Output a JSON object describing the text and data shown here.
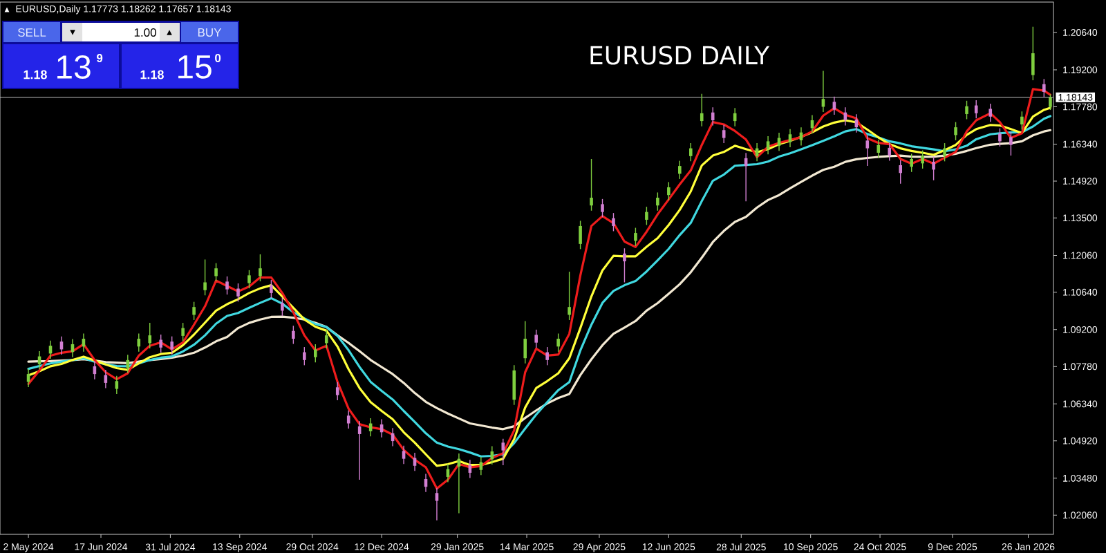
{
  "chart_data": {
    "type": "candlestick",
    "title": "EURUSD,Daily 1.17773 1.18262 1.17657 1.18143",
    "annotations": [
      "EURUSD DAILY",
      "SELL",
      "▼",
      "1.00",
      "▲",
      "BUY",
      "1.18",
      "13",
      "9",
      "1.18",
      "15",
      "0",
      "▲"
    ],
    "xlim": [
      "2024-04-14",
      "2026-02-11"
    ],
    "ylim": [
      1.0132,
      1.2181
    ],
    "xticks": [
      {
        "value": "2024-05-02",
        "label": "2 May 2024"
      },
      {
        "value": "2024-06-17",
        "label": "17 Jun 2024"
      },
      {
        "value": "2024-07-31",
        "label": "31 Jul 2024"
      },
      {
        "value": "2024-09-13",
        "label": "13 Sep 2024"
      },
      {
        "value": "2024-10-29",
        "label": "29 Oct 2024"
      },
      {
        "value": "2024-12-12",
        "label": "12 Dec 2024"
      },
      {
        "value": "2025-01-29",
        "label": "29 Jan 2025"
      },
      {
        "value": "2025-03-14",
        "label": "14 Mar 2025"
      },
      {
        "value": "2025-04-29",
        "label": "29 Apr 2025"
      },
      {
        "value": "2025-06-12",
        "label": "12 Jun 2025"
      },
      {
        "value": "2025-07-28",
        "label": "28 Jul 2025"
      },
      {
        "value": "2025-09-10",
        "label": "10 Sep 2025"
      },
      {
        "value": "2025-10-24",
        "label": "24 Oct 2025"
      },
      {
        "value": "2025-12-09",
        "label": "9 Dec 2025"
      },
      {
        "value": "2026-01-26",
        "label": "26 Jan 2026"
      }
    ],
    "yticks": [
      {
        "value": 1.0206,
        "label": "1.02060"
      },
      {
        "value": 1.0348,
        "label": "1.03480"
      },
      {
        "value": 1.0492,
        "label": "1.04920"
      },
      {
        "value": 1.0634,
        "label": "1.06340"
      },
      {
        "value": 1.0778,
        "label": "1.07780"
      },
      {
        "value": 1.092,
        "label": "1.09200"
      },
      {
        "value": 1.1064,
        "label": "1.10640"
      },
      {
        "value": 1.1206,
        "label": "1.12060"
      },
      {
        "value": 1.135,
        "label": "1.13500"
      },
      {
        "value": 1.1492,
        "label": "1.14920"
      },
      {
        "value": 1.1634,
        "label": "1.16340"
      },
      {
        "value": 1.1778,
        "label": "1.17780"
      },
      {
        "value": 1.192,
        "label": "1.19200"
      },
      {
        "value": 1.2064,
        "label": "1.20640"
      }
    ],
    "ref_lines": [
      {
        "axis": "y",
        "value": 1.18143,
        "label": "1.18143",
        "color": "#c0c0c0"
      }
    ],
    "x": [
      "2024-05-02",
      "2024-05-09",
      "2024-05-16",
      "2024-05-23",
      "2024-05-30",
      "2024-06-06",
      "2024-06-13",
      "2024-06-20",
      "2024-06-27",
      "2024-07-04",
      "2024-07-11",
      "2024-07-18",
      "2024-07-25",
      "2024-08-01",
      "2024-08-08",
      "2024-08-15",
      "2024-08-22",
      "2024-08-29",
      "2024-09-05",
      "2024-09-12",
      "2024-09-19",
      "2024-09-26",
      "2024-10-03",
      "2024-10-10",
      "2024-10-17",
      "2024-10-24",
      "2024-10-31",
      "2024-11-07",
      "2024-11-14",
      "2024-11-21",
      "2024-11-28",
      "2024-12-05",
      "2024-12-12",
      "2024-12-19",
      "2024-12-26",
      "2025-01-02",
      "2025-01-09",
      "2025-01-16",
      "2025-01-23",
      "2025-01-30",
      "2025-02-06",
      "2025-02-13",
      "2025-02-20",
      "2025-02-27",
      "2025-03-06",
      "2025-03-13",
      "2025-03-20",
      "2025-03-27",
      "2025-04-03",
      "2025-04-10",
      "2025-04-17",
      "2025-04-24",
      "2025-05-01",
      "2025-05-08",
      "2025-05-15",
      "2025-05-22",
      "2025-05-29",
      "2025-06-05",
      "2025-06-12",
      "2025-06-19",
      "2025-06-26",
      "2025-07-03",
      "2025-07-10",
      "2025-07-17",
      "2025-07-24",
      "2025-07-31",
      "2025-08-07",
      "2025-08-14",
      "2025-08-21",
      "2025-08-28",
      "2025-09-04",
      "2025-09-11",
      "2025-09-18",
      "2025-09-25",
      "2025-10-02",
      "2025-10-09",
      "2025-10-16",
      "2025-10-23",
      "2025-10-30",
      "2025-11-06",
      "2025-11-13",
      "2025-11-20",
      "2025-11-27",
      "2025-12-04",
      "2025-12-11",
      "2025-12-18",
      "2025-12-24",
      "2026-01-02",
      "2026-01-08",
      "2026-01-15",
      "2026-01-22",
      "2026-01-29",
      "2026-02-05",
      "2026-02-09"
    ],
    "ohlc": [
      [
        1.0719,
        1.0769,
        1.0699,
        1.0749
      ],
      [
        1.0787,
        1.0837,
        1.0767,
        1.0817
      ],
      [
        1.0828,
        1.0878,
        1.0808,
        1.0858
      ],
      [
        1.0874,
        1.0894,
        1.0824,
        1.0844
      ],
      [
        1.0834,
        1.0884,
        1.0814,
        1.0864
      ],
      [
        1.0855,
        1.0905,
        1.0835,
        1.0885
      ],
      [
        1.0779,
        1.0799,
        1.0729,
        1.0749
      ],
      [
        1.0745,
        1.0765,
        1.0695,
        1.0715
      ],
      [
        1.0692,
        1.0742,
        1.0672,
        1.0722
      ],
      [
        1.0773,
        1.0823,
        1.0753,
        1.0803
      ],
      [
        1.0855,
        1.0905,
        1.0835,
        1.0885
      ],
      [
        1.0868,
        1.0946,
        1.0848,
        1.0898
      ],
      [
        1.0881,
        1.0901,
        1.0831,
        1.0851
      ],
      [
        1.0874,
        1.0894,
        1.0824,
        1.0844
      ],
      [
        1.0896,
        1.0946,
        1.0876,
        1.0926
      ],
      [
        1.0977,
        1.1027,
        1.0957,
        1.1007
      ],
      [
        1.1072,
        1.119,
        1.1052,
        1.1102
      ],
      [
        1.1126,
        1.1176,
        1.1106,
        1.1156
      ],
      [
        1.1105,
        1.1125,
        1.1055,
        1.1075
      ],
      [
        1.1078,
        1.1098,
        1.1028,
        1.1048
      ],
      [
        1.1099,
        1.1149,
        1.1079,
        1.1129
      ],
      [
        1.1126,
        1.121,
        1.1106,
        1.1156
      ],
      [
        1.1091,
        1.1111,
        1.1041,
        1.1061
      ],
      [
        1.1023,
        1.1043,
        1.0973,
        1.0993
      ],
      [
        1.0915,
        1.0935,
        1.0865,
        1.0885
      ],
      [
        1.0833,
        1.0853,
        1.0783,
        1.0803
      ],
      [
        1.0814,
        1.0864,
        1.0794,
        1.0844
      ],
      [
        1.0868,
        1.0918,
        1.0848,
        1.0898
      ],
      [
        1.0698,
        1.0718,
        1.0648,
        1.0668
      ],
      [
        1.0589,
        1.0609,
        1.0539,
        1.0559
      ],
      [
        1.0548,
        1.0568,
        1.0342,
        1.0518
      ],
      [
        1.0529,
        1.0579,
        1.0509,
        1.0559
      ],
      [
        1.0555,
        1.0575,
        1.0505,
        1.0525
      ],
      [
        1.0521,
        1.0541,
        1.0471,
        1.0491
      ],
      [
        1.0453,
        1.0473,
        1.0403,
        1.0423
      ],
      [
        1.0426,
        1.0446,
        1.0376,
        1.0396
      ],
      [
        1.0345,
        1.0365,
        1.0295,
        1.0315
      ],
      [
        1.0291,
        1.0311,
        1.0186,
        1.0261
      ],
      [
        1.0353,
        1.0403,
        1.0333,
        1.0383
      ],
      [
        1.0393,
        1.0443,
        1.0213,
        1.0423
      ],
      [
        1.0399,
        1.0419,
        1.0349,
        1.0369
      ],
      [
        1.038,
        1.043,
        1.036,
        1.041
      ],
      [
        1.0421,
        1.0471,
        1.0401,
        1.0451
      ],
      [
        1.0485,
        1.05,
        1.0398,
        1.0455
      ],
      [
        1.065,
        1.0783,
        1.063,
        1.0763
      ],
      [
        1.081,
        1.0953,
        1.079,
        1.0885
      ],
      [
        1.09,
        1.092,
        1.085,
        1.087
      ],
      [
        1.0833,
        1.0853,
        1.0783,
        1.0803
      ],
      [
        1.0855,
        1.0905,
        1.0835,
        1.0885
      ],
      [
        1.0977,
        1.1143,
        1.0957,
        1.1007
      ],
      [
        1.125,
        1.1339,
        1.123,
        1.1319
      ],
      [
        1.1398,
        1.1577,
        1.1378,
        1.1428
      ],
      [
        1.1403,
        1.1423,
        1.1353,
        1.1373
      ],
      [
        1.1349,
        1.1369,
        1.1299,
        1.1319
      ],
      [
        1.1213,
        1.1233,
        1.1102,
        1.1183
      ],
      [
        1.1262,
        1.1312,
        1.1242,
        1.1292
      ],
      [
        1.1343,
        1.1393,
        1.1323,
        1.1373
      ],
      [
        1.1398,
        1.1448,
        1.1378,
        1.1428
      ],
      [
        1.1438,
        1.1488,
        1.1418,
        1.1468
      ],
      [
        1.152,
        1.157,
        1.15,
        1.155
      ],
      [
        1.1588,
        1.1638,
        1.1568,
        1.1618
      ],
      [
        1.1723,
        1.1828,
        1.1703,
        1.1753
      ],
      [
        1.1756,
        1.1776,
        1.1706,
        1.1726
      ],
      [
        1.1688,
        1.1708,
        1.1638,
        1.1658
      ],
      [
        1.1723,
        1.1773,
        1.1703,
        1.1753
      ],
      [
        1.158,
        1.16,
        1.1414,
        1.155
      ],
      [
        1.1588,
        1.1638,
        1.1568,
        1.1618
      ],
      [
        1.1615,
        1.1665,
        1.1595,
        1.1645
      ],
      [
        1.1628,
        1.1678,
        1.1608,
        1.1658
      ],
      [
        1.1642,
        1.1692,
        1.1622,
        1.1672
      ],
      [
        1.1649,
        1.1699,
        1.1629,
        1.1679
      ],
      [
        1.1696,
        1.1746,
        1.1676,
        1.1726
      ],
      [
        1.1778,
        1.1916,
        1.1758,
        1.1808
      ],
      [
        1.1797,
        1.1817,
        1.1747,
        1.1767
      ],
      [
        1.1756,
        1.1776,
        1.1706,
        1.1726
      ],
      [
        1.1729,
        1.1749,
        1.1679,
        1.1699
      ],
      [
        1.1648,
        1.1668,
        1.155,
        1.1618
      ],
      [
        1.1601,
        1.1651,
        1.1581,
        1.1631
      ],
      [
        1.162,
        1.164,
        1.157,
        1.159
      ],
      [
        1.1553,
        1.1573,
        1.1482,
        1.1523
      ],
      [
        1.1547,
        1.1597,
        1.1527,
        1.1577
      ],
      [
        1.156,
        1.161,
        1.154,
        1.159
      ],
      [
        1.1566,
        1.1586,
        1.1495,
        1.1536
      ],
      [
        1.1588,
        1.1638,
        1.1568,
        1.1618
      ],
      [
        1.1669,
        1.1719,
        1.1649,
        1.1699
      ],
      [
        1.175,
        1.1801,
        1.173,
        1.178
      ],
      [
        1.1783,
        1.1803,
        1.1733,
        1.1753
      ],
      [
        1.177,
        1.179,
        1.172,
        1.174
      ],
      [
        1.1675,
        1.1695,
        1.1625,
        1.1645
      ],
      [
        1.1661,
        1.1681,
        1.159,
        1.1631
      ],
      [
        1.171,
        1.176,
        1.169,
        1.174
      ],
      [
        1.19,
        1.2086,
        1.188,
        1.1984
      ],
      [
        1.1865,
        1.1885,
        1.1815,
        1.1835
      ],
      [
        1.17773,
        1.18262,
        1.17657,
        1.18143
      ]
    ],
    "colors": [
      "#7fcf3f",
      "#7fcf3f",
      "#7fcf3f",
      "#d27fd2",
      "#7fcf3f",
      "#7fcf3f",
      "#d27fd2",
      "#d27fd2",
      "#7fcf3f",
      "#7fcf3f",
      "#7fcf3f",
      "#7fcf3f",
      "#d27fd2",
      "#d27fd2",
      "#7fcf3f",
      "#7fcf3f",
      "#7fcf3f",
      "#7fcf3f",
      "#d27fd2",
      "#d27fd2",
      "#7fcf3f",
      "#7fcf3f",
      "#d27fd2",
      "#d27fd2",
      "#d27fd2",
      "#d27fd2",
      "#7fcf3f",
      "#7fcf3f",
      "#d27fd2",
      "#d27fd2",
      "#d27fd2",
      "#7fcf3f",
      "#d27fd2",
      "#d27fd2",
      "#d27fd2",
      "#d27fd2",
      "#d27fd2",
      "#d27fd2",
      "#7fcf3f",
      "#7fcf3f",
      "#d27fd2",
      "#7fcf3f",
      "#7fcf3f",
      "#d27fd2",
      "#7fcf3f",
      "#7fcf3f",
      "#d27fd2",
      "#d27fd2",
      "#7fcf3f",
      "#7fcf3f",
      "#7fcf3f",
      "#7fcf3f",
      "#d27fd2",
      "#d27fd2",
      "#d27fd2",
      "#7fcf3f",
      "#7fcf3f",
      "#7fcf3f",
      "#7fcf3f",
      "#7fcf3f",
      "#7fcf3f",
      "#7fcf3f",
      "#d27fd2",
      "#d27fd2",
      "#7fcf3f",
      "#d27fd2",
      "#7fcf3f",
      "#7fcf3f",
      "#7fcf3f",
      "#7fcf3f",
      "#7fcf3f",
      "#7fcf3f",
      "#7fcf3f",
      "#d27fd2",
      "#d27fd2",
      "#d27fd2",
      "#d27fd2",
      "#7fcf3f",
      "#d27fd2",
      "#d27fd2",
      "#7fcf3f",
      "#7fcf3f",
      "#d27fd2",
      "#7fcf3f",
      "#7fcf3f",
      "#7fcf3f",
      "#d27fd2",
      "#d27fd2",
      "#d27fd2",
      "#d27fd2",
      "#7fcf3f",
      "#7fcf3f",
      "#d27fd2",
      "#7fcf3f"
    ],
    "series": [
      {
        "type": "line",
        "color": "#f2e8d2",
        "values": [
          1.0797,
          1.0798,
          1.0799,
          1.0801,
          1.0803,
          1.0806,
          1.0801,
          1.0795,
          1.0793,
          1.0791,
          1.0797,
          1.0803,
          1.0807,
          1.0812,
          1.082,
          1.0831,
          1.0851,
          1.0875,
          1.0892,
          1.0926,
          1.0946,
          1.0959,
          1.0969,
          1.097,
          1.0966,
          1.0959,
          1.0946,
          1.093,
          1.0898,
          1.0869,
          1.0837,
          1.0803,
          1.0776,
          1.0749,
          1.0715,
          1.0676,
          1.0642,
          1.0618,
          1.0597,
          1.0578,
          1.0559,
          1.0551,
          1.0543,
          1.0537,
          1.0548,
          1.058,
          1.0609,
          1.0636,
          1.0657,
          1.0672,
          1.0745,
          1.0806,
          1.086,
          1.0904,
          1.0928,
          1.0953,
          1.0993,
          1.1022,
          1.1058,
          1.1095,
          1.1141,
          1.1197,
          1.1257,
          1.13,
          1.1335,
          1.1354,
          1.139,
          1.1419,
          1.1438,
          1.1464,
          1.1489,
          1.1513,
          1.1535,
          1.1547,
          1.1566,
          1.1576,
          1.1581,
          1.1585,
          1.1588,
          1.159,
          1.1586,
          1.1585,
          1.1586,
          1.159,
          1.1597,
          1.1608,
          1.1619,
          1.1632,
          1.1635,
          1.1638,
          1.1645,
          1.1668,
          1.1683,
          1.1688
        ]
      },
      {
        "type": "line",
        "color": "#40d8e0",
        "values": [
          1.0769,
          1.078,
          1.079,
          1.0797,
          1.0803,
          1.081,
          1.0797,
          1.0787,
          1.078,
          1.0779,
          1.079,
          1.0803,
          1.0812,
          1.0817,
          1.0836,
          1.0862,
          1.0898,
          1.0943,
          1.0973,
          1.0984,
          1.1004,
          1.1023,
          1.1041,
          1.102,
          1.0987,
          1.0963,
          1.0942,
          1.093,
          1.0896,
          1.0841,
          1.0776,
          1.0719,
          1.0684,
          1.0651,
          1.0607,
          1.0565,
          1.0521,
          1.0485,
          1.047,
          1.046,
          1.0447,
          1.0432,
          1.0434,
          1.044,
          1.0483,
          1.0539,
          1.0593,
          1.0641,
          1.0687,
          1.0718,
          1.084,
          1.0939,
          1.1023,
          1.1069,
          1.1091,
          1.1107,
          1.1144,
          1.1187,
          1.1231,
          1.1284,
          1.1331,
          1.1415,
          1.1493,
          1.1517,
          1.1551,
          1.1554,
          1.1557,
          1.1567,
          1.1586,
          1.1599,
          1.1614,
          1.163,
          1.1647,
          1.1664,
          1.1683,
          1.1692,
          1.1673,
          1.166,
          1.1645,
          1.1637,
          1.1626,
          1.162,
          1.1614,
          1.1607,
          1.1614,
          1.1628,
          1.1653,
          1.1672,
          1.1676,
          1.1679,
          1.168,
          1.1702,
          1.1732,
          1.1742
        ]
      },
      {
        "type": "line",
        "color": "#ffff3a",
        "values": [
          1.0744,
          1.076,
          1.0779,
          1.0788,
          1.0803,
          1.0816,
          1.0801,
          1.0786,
          1.0772,
          1.0765,
          1.079,
          1.0814,
          1.0826,
          1.0831,
          1.086,
          1.0901,
          1.0947,
          1.0993,
          1.1018,
          1.1037,
          1.1061,
          1.1079,
          1.1091,
          1.1048,
          1.1004,
          1.0959,
          1.0931,
          1.0916,
          1.0855,
          1.0768,
          1.0695,
          1.0641,
          1.0607,
          1.0575,
          1.0525,
          1.0485,
          1.044,
          1.0396,
          1.0402,
          1.0414,
          1.0399,
          1.0399,
          1.041,
          1.0423,
          1.0498,
          1.062,
          1.0695,
          1.0722,
          1.0752,
          1.081,
          1.0926,
          1.1048,
          1.1148,
          1.1204,
          1.1202,
          1.1202,
          1.1239,
          1.1272,
          1.1323,
          1.1381,
          1.1452,
          1.1552,
          1.159,
          1.1604,
          1.1628,
          1.1615,
          1.1603,
          1.1615,
          1.1634,
          1.1647,
          1.1662,
          1.168,
          1.1702,
          1.1717,
          1.1726,
          1.1718,
          1.169,
          1.166,
          1.1634,
          1.1618,
          1.1608,
          1.1601,
          1.1593,
          1.1611,
          1.1631,
          1.167,
          1.1692,
          1.1708,
          1.1706,
          1.1692,
          1.1677,
          1.174,
          1.1766,
          1.1774
        ]
      },
      {
        "type": "line",
        "color": "#ee1c1c",
        "values": [
          1.0711,
          1.0763,
          1.082,
          1.0831,
          1.0837,
          1.0864,
          1.0803,
          1.0756,
          1.0729,
          1.0752,
          1.082,
          1.0858,
          1.0871,
          1.0844,
          1.0871,
          1.0939,
          1.101,
          1.1109,
          1.1088,
          1.1067,
          1.1086,
          1.1121,
          1.1121,
          1.1061,
          1.0987,
          1.0898,
          1.084,
          1.0858,
          1.0719,
          1.0616,
          1.0556,
          1.0544,
          1.0537,
          1.0516,
          1.0457,
          1.0419,
          1.039,
          1.0308,
          1.0342,
          1.0403,
          1.039,
          1.0395,
          1.0426,
          1.0444,
          1.0532,
          1.0756,
          1.0847,
          1.082,
          1.0824,
          1.0904,
          1.1129,
          1.1319,
          1.1357,
          1.133,
          1.1259,
          1.1238,
          1.1297,
          1.1364,
          1.1421,
          1.1479,
          1.1533,
          1.1631,
          1.1719,
          1.171,
          1.1685,
          1.1652,
          1.1584,
          1.1624,
          1.1639,
          1.165,
          1.1661,
          1.1683,
          1.1744,
          1.1772,
          1.1747,
          1.1733,
          1.1657,
          1.1639,
          1.1634,
          1.1577,
          1.1559,
          1.1577,
          1.1559,
          1.1582,
          1.1604,
          1.1683,
          1.1726,
          1.1753,
          1.1719,
          1.1658,
          1.1676,
          1.1846,
          1.184,
          1.1824
        ]
      }
    ]
  }
}
